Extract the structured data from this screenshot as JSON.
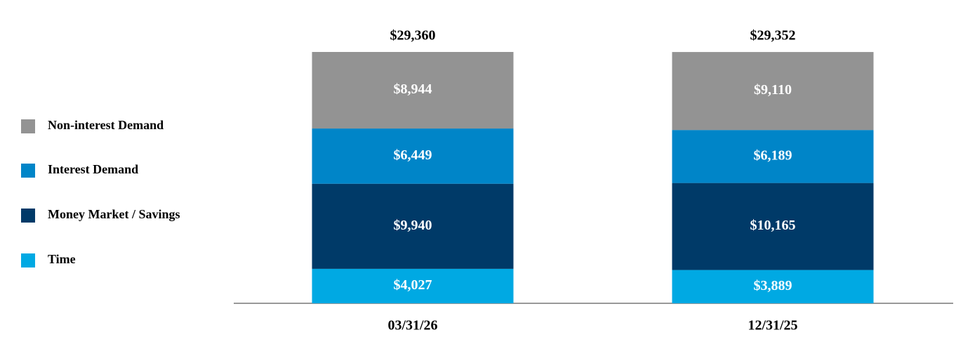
{
  "chart_data": {
    "type": "stacked_bar",
    "categories": [
      "03/31/26",
      "12/31/25"
    ],
    "series": [
      {
        "name": "Non-interest Demand",
        "color": "#939393",
        "values": [
          8944,
          9110
        ],
        "value_labels": [
          "$8,944",
          "$9,110"
        ]
      },
      {
        "name": "Interest Demand",
        "color": "#0085c8",
        "values": [
          6449,
          6189
        ],
        "value_labels": [
          "$6,449",
          "$6,189"
        ]
      },
      {
        "name": "Money Market / Savings",
        "color": "#003a68",
        "values": [
          9940,
          10165
        ],
        "value_labels": [
          "$9,940",
          "$10,165"
        ]
      },
      {
        "name": "Time",
        "color": "#00a9e3",
        "values": [
          4027,
          3889
        ],
        "value_labels": [
          "$4,027",
          "$3,889"
        ]
      }
    ],
    "totals": [
      29360,
      29352
    ],
    "total_labels": [
      "$29,360",
      "$29,352"
    ],
    "legend": "left"
  }
}
